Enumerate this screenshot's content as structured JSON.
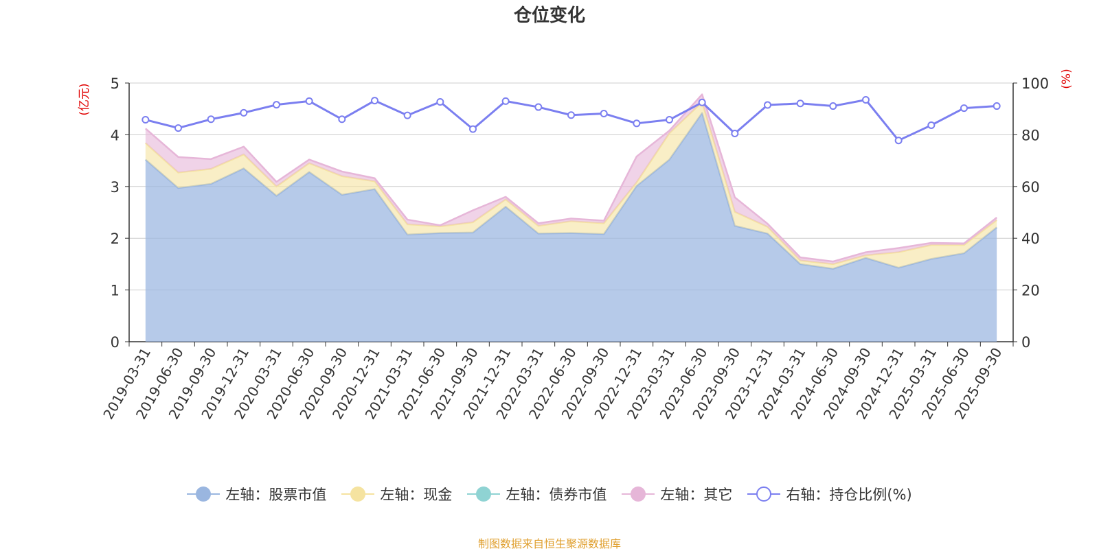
{
  "chart_data": {
    "type": "area",
    "title": "仓位变化",
    "y_left_label": "(亿元)",
    "y_right_label": "(%)",
    "y_left_lim": [
      0,
      5
    ],
    "y_left_ticks": [
      "0",
      "1",
      "2",
      "3",
      "4",
      "5"
    ],
    "y_right_lim": [
      0,
      100
    ],
    "y_right_ticks": [
      "0",
      "20",
      "40",
      "60",
      "80",
      "100"
    ],
    "grid": true,
    "legend_position": "bottom",
    "categories": [
      "2019-03-31",
      "2019-06-30",
      "2019-09-30",
      "2019-12-31",
      "2020-03-31",
      "2020-06-30",
      "2020-09-30",
      "2020-12-31",
      "2021-03-31",
      "2021-06-30",
      "2021-09-30",
      "2021-12-31",
      "2022-03-31",
      "2022-06-30",
      "2022-09-30",
      "2022-12-31",
      "2023-03-31",
      "2023-06-30",
      "2023-09-30",
      "2023-12-31",
      "2024-03-31",
      "2024-06-30",
      "2024-09-30",
      "2024-12-31",
      "2025-03-31",
      "2025-06-30",
      "2025-09-30"
    ],
    "series": [
      {
        "name": "左轴：股票市值",
        "axis": "left",
        "stacked": true,
        "color": "#9ab6e0",
        "values": [
          3.52,
          2.97,
          3.05,
          3.35,
          2.82,
          3.28,
          2.84,
          2.95,
          2.07,
          2.1,
          2.11,
          2.61,
          2.09,
          2.1,
          2.08,
          3.01,
          3.52,
          4.42,
          2.24,
          2.09,
          1.5,
          1.41,
          1.62,
          1.43,
          1.6,
          1.71,
          2.21
        ]
      },
      {
        "name": "左轴：现金",
        "axis": "left",
        "stacked": true,
        "color": "#f5e3a0",
        "values": [
          0.32,
          0.3,
          0.29,
          0.27,
          0.18,
          0.17,
          0.36,
          0.15,
          0.2,
          0.13,
          0.2,
          0.14,
          0.15,
          0.23,
          0.21,
          0.07,
          0.51,
          0.21,
          0.27,
          0.13,
          0.07,
          0.09,
          0.05,
          0.3,
          0.27,
          0.16,
          0.14
        ]
      },
      {
        "name": "左轴：债券市值",
        "axis": "left",
        "stacked": true,
        "color": "#8fd3d3",
        "values": [
          0,
          0,
          0,
          0,
          0,
          0,
          0,
          0,
          0,
          0,
          0,
          0,
          0,
          0,
          0,
          0,
          0,
          0,
          0,
          0,
          0,
          0,
          0,
          0,
          0,
          0,
          0
        ]
      },
      {
        "name": "左轴：其它",
        "axis": "left",
        "stacked": true,
        "color": "#e6b6d8",
        "values": [
          0.28,
          0.3,
          0.19,
          0.15,
          0.09,
          0.07,
          0.09,
          0.06,
          0.09,
          0.02,
          0.23,
          0.05,
          0.05,
          0.05,
          0.05,
          0.5,
          0.05,
          0.15,
          0.28,
          0.06,
          0.06,
          0.05,
          0.06,
          0.08,
          0.04,
          0.03,
          0.05
        ]
      },
      {
        "name": "右轴：持仓比例(%)",
        "axis": "right",
        "stacked": false,
        "color": "#7b7ff0",
        "values": [
          85.8,
          82.6,
          86.0,
          88.5,
          91.6,
          93.0,
          86.0,
          93.2,
          87.5,
          92.7,
          82.2,
          93.0,
          90.7,
          87.6,
          88.2,
          84.4,
          85.8,
          92.5,
          80.5,
          91.5,
          92.1,
          91.1,
          93.5,
          77.8,
          83.7,
          90.3,
          91.1
        ]
      }
    ]
  },
  "source_note": "制图数据来自恒生聚源数据库"
}
